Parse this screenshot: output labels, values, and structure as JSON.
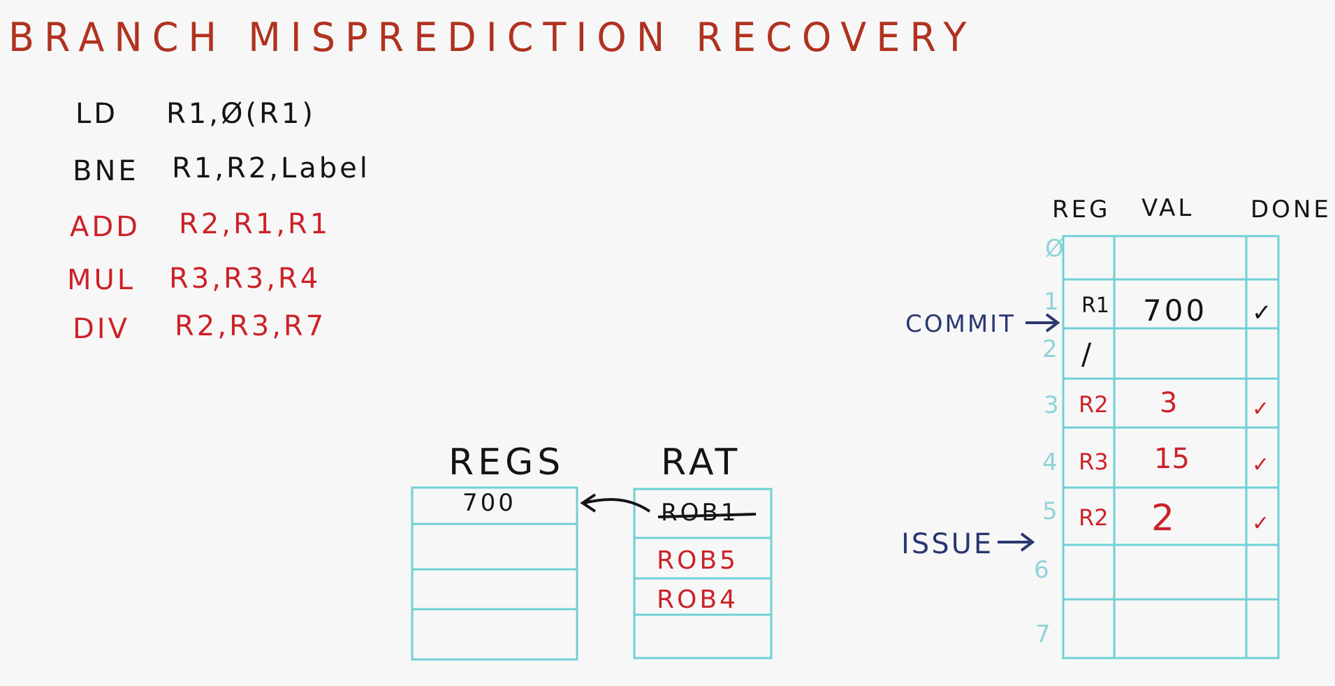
{
  "title": "BRANCH MISPREDICTION RECOVERY",
  "code": [
    {
      "op": "LD",
      "args": "R1,Ø(R1)",
      "color": "black"
    },
    {
      "op": "BNE",
      "args": "R1,R2,Label",
      "color": "black"
    },
    {
      "op": "ADD",
      "args": "R2,R1,R1",
      "color": "red"
    },
    {
      "op": "MUL",
      "args": "R3,R3,R4",
      "color": "red"
    },
    {
      "op": "DIV",
      "args": "R2,R3,R7",
      "color": "red"
    }
  ],
  "regs": {
    "label": "REGS",
    "rows": [
      "700",
      "",
      "",
      ""
    ]
  },
  "rat": {
    "label": "RAT",
    "rows": [
      "ROB1",
      "ROB5",
      "ROB4",
      ""
    ]
  },
  "rob": {
    "headers": [
      "REG",
      "VAL",
      "DONE"
    ],
    "indices": [
      "Ø",
      "1",
      "2",
      "3",
      "4",
      "5",
      "6",
      "7"
    ],
    "rows": [
      {
        "reg": "",
        "val": "",
        "done": ""
      },
      {
        "reg": "R1",
        "val": "700",
        "done": "✓"
      },
      {
        "reg": "/",
        "val": "",
        "done": ""
      },
      {
        "reg": "R2",
        "val": "3",
        "done": "✓"
      },
      {
        "reg": "R3",
        "val": "15",
        "done": "✓"
      },
      {
        "reg": "R2",
        "val": "2",
        "done": "✓"
      },
      {
        "reg": "",
        "val": "",
        "done": ""
      },
      {
        "reg": "",
        "val": "",
        "done": ""
      }
    ]
  },
  "pointers": {
    "commit": "COMMIT",
    "issue": "ISSUE"
  },
  "colors": {
    "title": "#b0321f",
    "red_ink": "#cc2128",
    "black_ink": "#141414",
    "grid": "#6fd0d6",
    "pointer": "#2a3770"
  }
}
